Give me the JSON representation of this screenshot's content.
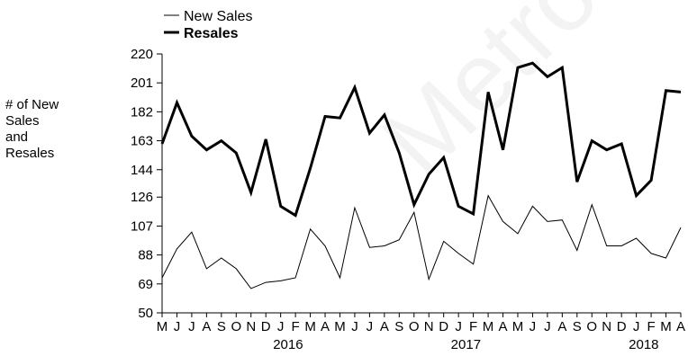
{
  "watermark": "Metro",
  "chart_data": {
    "type": "line",
    "title": "",
    "xlabel": "",
    "ylabel": "# of New\nSales\nand\nResales",
    "ylim": [
      50,
      220
    ],
    "yticks": [
      "50",
      "69",
      "88",
      "107",
      "126",
      "144",
      "163",
      "182",
      "201",
      "220"
    ],
    "year_labels": [
      {
        "label": "2016",
        "index": 9
      },
      {
        "label": "2017",
        "index": 21
      },
      {
        "label": "2018",
        "index": 33
      }
    ],
    "categories": [
      "M",
      "J",
      "J",
      "A",
      "S",
      "O",
      "N",
      "D",
      "J",
      "F",
      "M",
      "A",
      "M",
      "J",
      "J",
      "A",
      "S",
      "O",
      "N",
      "D",
      "J",
      "F",
      "M",
      "A",
      "M",
      "J",
      "J",
      "A",
      "S",
      "O",
      "N",
      "D",
      "J",
      "F",
      "M",
      "A"
    ],
    "legend_position": "top-left",
    "grid": false,
    "series": [
      {
        "name": "New Sales",
        "color": "#000000",
        "values": [
          73,
          92,
          103,
          79,
          86,
          79,
          66,
          70,
          71,
          73,
          105,
          94,
          73,
          119,
          93,
          94,
          98,
          116,
          72,
          97,
          89,
          82,
          127,
          110,
          102,
          120,
          110,
          111,
          91,
          121,
          94,
          94,
          99,
          89,
          86,
          106
        ]
      },
      {
        "name": "Resales",
        "color": "#000000",
        "values": [
          161,
          188,
          166,
          157,
          163,
          155,
          129,
          164,
          120,
          114,
          145,
          179,
          178,
          198,
          168,
          180,
          155,
          121,
          141,
          152,
          120,
          115,
          195,
          157,
          211,
          214,
          205,
          211,
          136,
          163,
          157,
          161,
          127,
          137,
          196,
          195
        ]
      }
    ]
  }
}
